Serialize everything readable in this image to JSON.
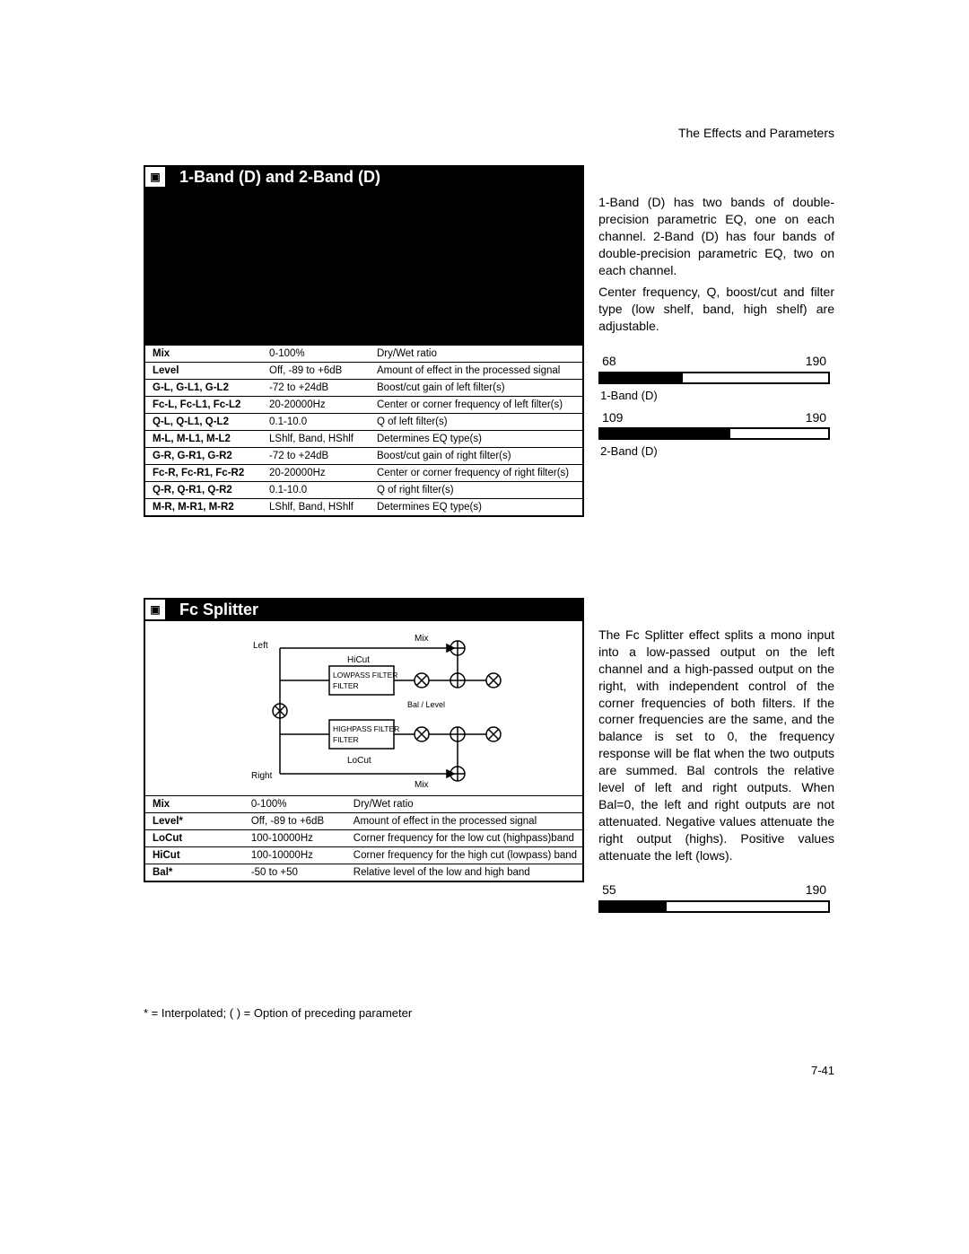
{
  "header": {
    "chapter": "The Effects and Parameters"
  },
  "section1": {
    "title": "1-Band (D) and 2-Band (D)",
    "params": [
      {
        "name": "Mix",
        "range": "0-100%",
        "desc": "Dry/Wet ratio"
      },
      {
        "name": "Level",
        "range": "Off, -89 to +6dB",
        "desc": "Amount of effect in the processed signal"
      },
      {
        "name": "G-L, G-L1, G-L2",
        "range": "-72 to +24dB",
        "desc": "Boost/cut gain of left filter(s)"
      },
      {
        "name": "Fc-L, Fc-L1, Fc-L2",
        "range": "20-20000Hz",
        "desc": "Center or corner frequency of left filter(s)"
      },
      {
        "name": "Q-L, Q-L1, Q-L2",
        "range": "0.1-10.0",
        "desc": "Q of left filter(s)"
      },
      {
        "name": "M-L, M-L1, M-L2",
        "range": "LShlf, Band, HShlf",
        "desc": "Determines EQ type(s)"
      },
      {
        "name": "G-R, G-R1, G-R2",
        "range": "-72 to +24dB",
        "desc": "Boost/cut gain of right filter(s)"
      },
      {
        "name": "Fc-R, Fc-R1, Fc-R2",
        "range": "20-20000Hz",
        "desc": "Center or corner frequency of right filter(s)"
      },
      {
        "name": "Q-R, Q-R1, Q-R2",
        "range": "0.1-10.0",
        "desc": "Q of right filter(s)"
      },
      {
        "name": "M-R, M-R1, M-R2",
        "range": "LShlf, Band, HShlf",
        "desc": "Determines EQ type(s)"
      }
    ],
    "desc1": "1-Band (D) has two bands of double-precision parametric EQ, one on each channel. 2-Band (D) has four bands of double-precision parametric EQ, two on each channel.",
    "desc2": "Center frequency, Q, boost/cut and filter type (low shelf, band, high shelf) are adjustable.",
    "usage": [
      {
        "used": "68",
        "total": "190",
        "label": "1-Band (D)",
        "fill_pct": 36
      },
      {
        "used": "109",
        "total": "190",
        "label": "2-Band (D)",
        "fill_pct": 57
      }
    ]
  },
  "section2": {
    "title": "Fc Splitter",
    "diagram": {
      "left_label": "Left",
      "right_label": "Right",
      "hicut": "HiCut",
      "locut": "LoCut",
      "lowpass": "LOWPASS FILTER",
      "highpass": "HIGHPASS FILTER",
      "mix": "Mix",
      "bal": "Bal / Level"
    },
    "params": [
      {
        "name": "Mix",
        "range": "0-100%",
        "desc": "Dry/Wet ratio"
      },
      {
        "name": "Level*",
        "range": "Off, -89 to +6dB",
        "desc": "Amount of effect in the processed signal"
      },
      {
        "name": "LoCut",
        "range": "100-10000Hz",
        "desc": "Corner frequency for the low cut (highpass)band"
      },
      {
        "name": "HiCut",
        "range": "100-10000Hz",
        "desc": "Corner frequency for the high cut (lowpass) band"
      },
      {
        "name": "Bal*",
        "range": "-50 to +50",
        "desc": "Relative level of the low and high band"
      }
    ],
    "desc": "The Fc Splitter effect splits a mono input into a low-passed output on the left channel and a high-passed output on the right, with independent control of the corner frequencies of both filters. If the corner frequencies are the same, and the balance is set to 0, the frequency response will be flat when the two outputs are summed. Bal controls the relative level of left and right outputs. When Bal=0, the left and right outputs are not attenuated. Negative values attenuate the right output (highs). Positive values attenuate the left (lows).",
    "usage": {
      "used": "55",
      "total": "190",
      "fill_pct": 29
    }
  },
  "footnote": "* = Interpolated; ( ) = Option of preceding parameter",
  "page_num": "7-41"
}
